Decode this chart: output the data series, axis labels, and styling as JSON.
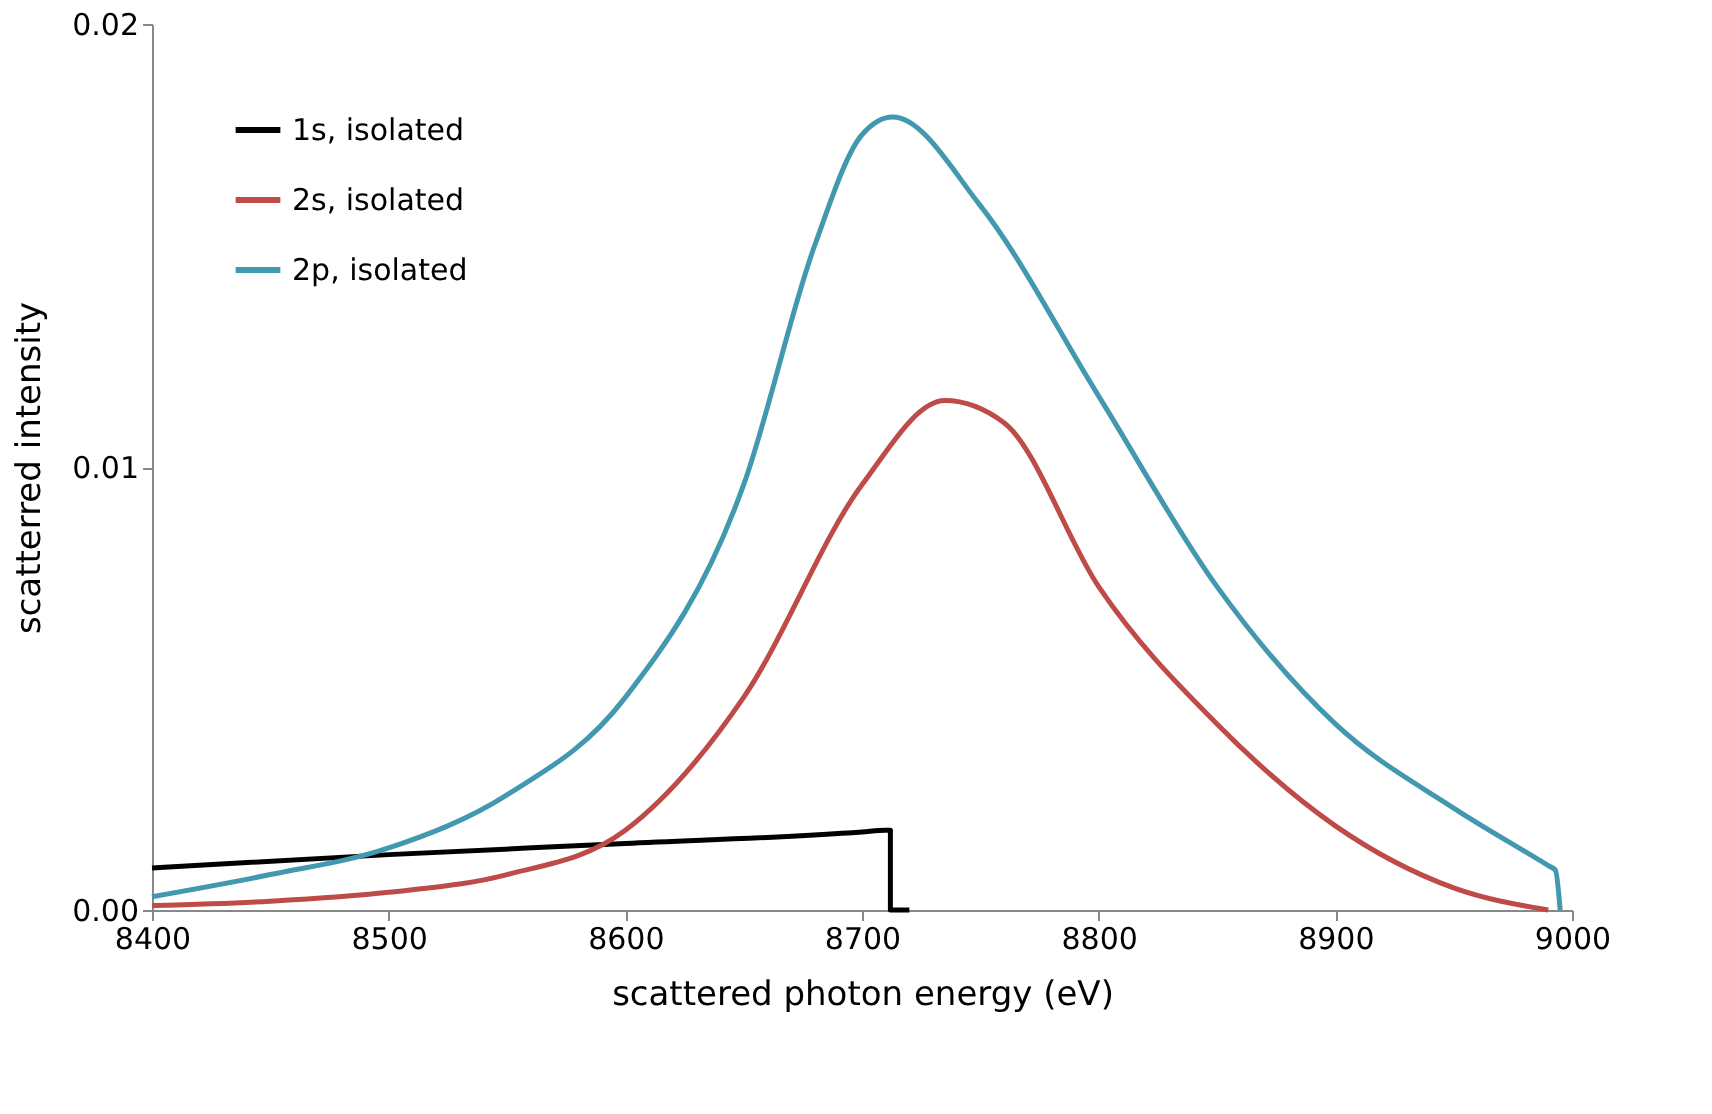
{
  "chart_data": {
    "type": "line",
    "xlabel": "scattered photon energy (eV)",
    "ylabel": "scatterred intensity",
    "xlim": [
      8400,
      9000
    ],
    "xticks": [
      8400,
      8500,
      8600,
      8700,
      8800,
      8900,
      9000
    ],
    "ylim": [
      0,
      0.02
    ],
    "yticks": [
      {
        "value": 0,
        "label": "0.00"
      },
      {
        "value": 0.01,
        "label": "0.01"
      },
      {
        "value": 0.02,
        "label": "0.02"
      }
    ],
    "grid": false,
    "legend": "top left",
    "marker": "none",
    "line_style": "solid",
    "series": [
      {
        "name": "1s, isolated",
        "color": "#000000",
        "x": [
          8400,
          8500,
          8600,
          8700,
          8710,
          8712,
          8712,
          8720
        ],
        "values": [
          0.00095,
          0.00125,
          0.0015,
          0.00176,
          0.0018,
          0.0018,
          0,
          0
        ]
      },
      {
        "name": "2s, isolated",
        "color": "#be4b48",
        "x": [
          8400,
          8450,
          8500,
          8550,
          8600,
          8650,
          8700,
          8735,
          8760,
          8800,
          8850,
          8900,
          8950,
          8990
        ],
        "values": [
          0.0001,
          0.0002,
          0.0004,
          0.0008,
          0.0018,
          0.0048,
          0.0096,
          0.0115,
          0.011,
          0.0073,
          0.0042,
          0.0019,
          0.0005,
          0
        ]
      },
      {
        "name": "2p, isolated",
        "color": "#4198af",
        "x": [
          8400,
          8450,
          8500,
          8550,
          8600,
          8650,
          8680,
          8700,
          8713,
          8750,
          8800,
          8850,
          8900,
          8950,
          8990,
          8993,
          8995
        ],
        "values": [
          0.0003,
          0.0008,
          0.0014,
          0.0026,
          0.0048,
          0.0096,
          0.015,
          0.0175,
          0.0179,
          0.0159,
          0.0116,
          0.0073,
          0.0042,
          0.0023,
          0.001,
          0.0009,
          0
        ]
      }
    ]
  }
}
